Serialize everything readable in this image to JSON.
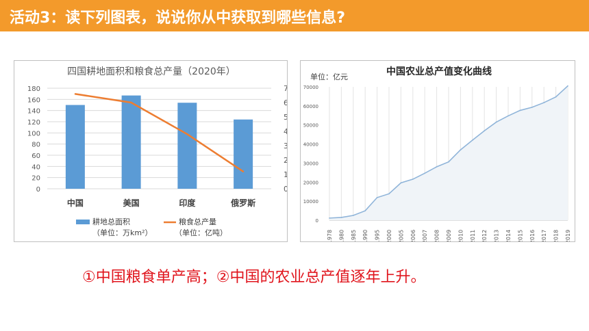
{
  "header": {
    "title": "活动3：读下列图表，说说你从中获取到哪些信息?"
  },
  "charts": {
    "left": {
      "chart_data": {
        "type": "bar+line",
        "title": "四国耕地面积和粮食总产量（2020年）",
        "categories": [
          "中国",
          "美国",
          "印度",
          "俄罗斯"
        ],
        "left_axis": {
          "ticks": [
            0,
            20,
            40,
            60,
            80,
            100,
            120,
            140,
            160,
            180
          ],
          "ylim": [
            0,
            180
          ]
        },
        "right_axis": {
          "ticks": [
            0,
            1,
            2,
            3,
            4,
            5,
            6,
            7
          ],
          "ylim": [
            0,
            7
          ]
        },
        "series": [
          {
            "name": "耕地总面积",
            "unit": "（单位：万km²）",
            "type": "bar",
            "axis": "left",
            "color": "#5b9bd5",
            "values": [
              150,
              167,
              154,
              124
            ]
          },
          {
            "name": "粮食总产量",
            "unit": "（单位：亿吨）",
            "type": "line",
            "axis": "right",
            "color": "#ed7d31",
            "values": [
              6.6,
              6.0,
              3.8,
              1.2
            ]
          }
        ],
        "legend_position": "bottom",
        "grid": true
      }
    },
    "right": {
      "chart_data": {
        "type": "area",
        "title": "中国农业总产值变化曲线",
        "unit_label": "单位：亿元",
        "x": [
          "1978",
          "1980",
          "1985",
          "1990",
          "1995",
          "2000",
          "2005",
          "2006",
          "2007",
          "2008",
          "2009",
          "2010",
          "2011",
          "2012",
          "2013",
          "2014",
          "2015",
          "2016",
          "2017",
          "2018",
          "2019"
        ],
        "y": [
          1117,
          1454,
          2506,
          4954,
          11885,
          13873,
          19613,
          21522,
          24658,
          28044,
          30611,
          36941,
          41988,
          46941,
          51497,
          54771,
          57636,
          59288,
          61720,
          64734,
          70467
        ],
        "yticks": [
          0,
          10000,
          20000,
          30000,
          40000,
          50000,
          60000,
          70000
        ],
        "ylim": [
          0,
          70000
        ],
        "color": "#8fb4d9",
        "grid": true
      }
    }
  },
  "conclusion": "①中国粮食单产高；②中国的农业总产值逐年上升。"
}
